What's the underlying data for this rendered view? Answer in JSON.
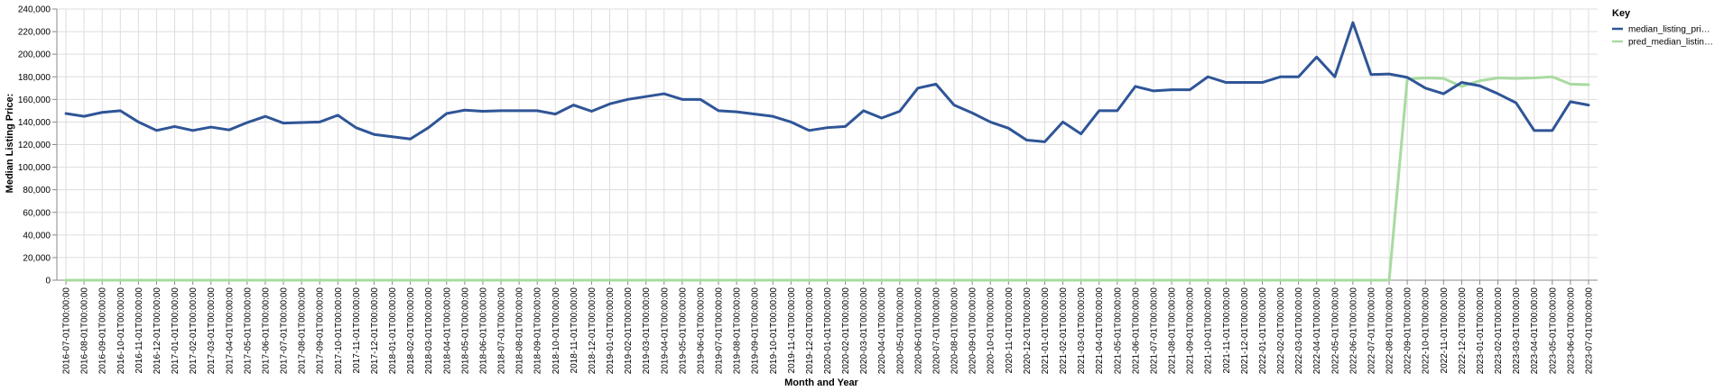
{
  "chart_data": {
    "type": "line",
    "xlabel": "Month and Year",
    "ylabel": "Median Listing Price:",
    "ylim": [
      0,
      240000
    ],
    "y_ticks": [
      "0",
      "20,000",
      "40,000",
      "60,000",
      "80,000",
      "100,000",
      "120,000",
      "140,000",
      "160,000",
      "180,000",
      "200,000",
      "220,000",
      "240,000"
    ],
    "grid": true,
    "legend_title": "Key",
    "legend_position": "top-right",
    "x": [
      "2016-07-01T00:00:00",
      "2016-08-01T00:00:00",
      "2016-09-01T00:00:00",
      "2016-10-01T00:00:00",
      "2016-11-01T00:00:00",
      "2016-12-01T00:00:00",
      "2017-01-01T00:00:00",
      "2017-02-01T00:00:00",
      "2017-03-01T00:00:00",
      "2017-04-01T00:00:00",
      "2017-05-01T00:00:00",
      "2017-06-01T00:00:00",
      "2017-07-01T00:00:00",
      "2017-08-01T00:00:00",
      "2017-09-01T00:00:00",
      "2017-10-01T00:00:00",
      "2017-11-01T00:00:00",
      "2017-12-01T00:00:00",
      "2018-01-01T00:00:00",
      "2018-02-01T00:00:00",
      "2018-03-01T00:00:00",
      "2018-04-01T00:00:00",
      "2018-05-01T00:00:00",
      "2018-06-01T00:00:00",
      "2018-07-01T00:00:00",
      "2018-08-01T00:00:00",
      "2018-09-01T00:00:00",
      "2018-10-01T00:00:00",
      "2018-11-01T00:00:00",
      "2018-12-01T00:00:00",
      "2019-01-01T00:00:00",
      "2019-02-01T00:00:00",
      "2019-03-01T00:00:00",
      "2019-04-01T00:00:00",
      "2019-05-01T00:00:00",
      "2019-06-01T00:00:00",
      "2019-07-01T00:00:00",
      "2019-08-01T00:00:00",
      "2019-09-01T00:00:00",
      "2019-10-01T00:00:00",
      "2019-11-01T00:00:00",
      "2019-12-01T00:00:00",
      "2020-01-01T00:00:00",
      "2020-02-01T00:00:00",
      "2020-03-01T00:00:00",
      "2020-04-01T00:00:00",
      "2020-05-01T00:00:00",
      "2020-06-01T00:00:00",
      "2020-07-01T00:00:00",
      "2020-08-01T00:00:00",
      "2020-09-01T00:00:00",
      "2020-10-01T00:00:00",
      "2020-11-01T00:00:00",
      "2020-12-01T00:00:00",
      "2021-01-01T00:00:00",
      "2021-02-01T00:00:00",
      "2021-03-01T00:00:00",
      "2021-04-01T00:00:00",
      "2021-05-01T00:00:00",
      "2021-06-01T00:00:00",
      "2021-07-01T00:00:00",
      "2021-08-01T00:00:00",
      "2021-09-01T00:00:00",
      "2021-10-01T00:00:00",
      "2021-11-01T00:00:00",
      "2021-12-01T00:00:00",
      "2022-01-01T00:00:00",
      "2022-02-01T00:00:00",
      "2022-03-01T00:00:00",
      "2022-04-01T00:00:00",
      "2022-05-01T00:00:00",
      "2022-06-01T00:00:00",
      "2022-07-01T00:00:00",
      "2022-08-01T00:00:00",
      "2022-09-01T00:00:00",
      "2022-10-01T00:00:00",
      "2022-11-01T00:00:00",
      "2022-12-01T00:00:00",
      "2023-01-01T00:00:00",
      "2023-02-01T00:00:00",
      "2023-03-01T00:00:00",
      "2023-04-01T00:00:00",
      "2023-05-01T00:00:00",
      "2023-06-01T00:00:00",
      "2023-07-01T00:00:00"
    ],
    "series": [
      {
        "name": "median_listing_pri…",
        "color": "#2f5597",
        "values": [
          147500,
          145000,
          148500,
          150000,
          140000,
          132500,
          136000,
          132500,
          135500,
          133000,
          139500,
          145000,
          139000,
          139500,
          140000,
          146000,
          135000,
          129000,
          127000,
          125000,
          135000,
          147500,
          150500,
          149500,
          150000,
          150000,
          150000,
          147000,
          155000,
          149500,
          156000,
          160000,
          162500,
          165000,
          160000,
          160000,
          150000,
          149000,
          147000,
          145000,
          140000,
          132500,
          135000,
          136000,
          150000,
          143500,
          149500,
          170000,
          173500,
          155000,
          148000,
          140000,
          134500,
          124000,
          122500,
          140000,
          129500,
          150000,
          150000,
          171500,
          167500,
          168500,
          168500,
          180000,
          175000,
          175000,
          175000,
          180000,
          180000,
          197500,
          180000,
          228000,
          182000,
          182500,
          179500,
          170000,
          165000,
          175000,
          172000,
          165000,
          157000,
          132500,
          132500,
          158000,
          155000
        ]
      },
      {
        "name": "pred_median_listin…",
        "color": "#a8dba0",
        "values": [
          0,
          0,
          0,
          0,
          0,
          0,
          0,
          0,
          0,
          0,
          0,
          0,
          0,
          0,
          0,
          0,
          0,
          0,
          0,
          0,
          0,
          0,
          0,
          0,
          0,
          0,
          0,
          0,
          0,
          0,
          0,
          0,
          0,
          0,
          0,
          0,
          0,
          0,
          0,
          0,
          0,
          0,
          0,
          0,
          0,
          0,
          0,
          0,
          0,
          0,
          0,
          0,
          0,
          0,
          0,
          0,
          0,
          0,
          0,
          0,
          0,
          0,
          0,
          0,
          0,
          0,
          0,
          0,
          0,
          0,
          0,
          0,
          0,
          0,
          178000,
          179000,
          178500,
          171500,
          176500,
          179000,
          178500,
          179000,
          180000,
          173500,
          173000
        ]
      }
    ]
  }
}
